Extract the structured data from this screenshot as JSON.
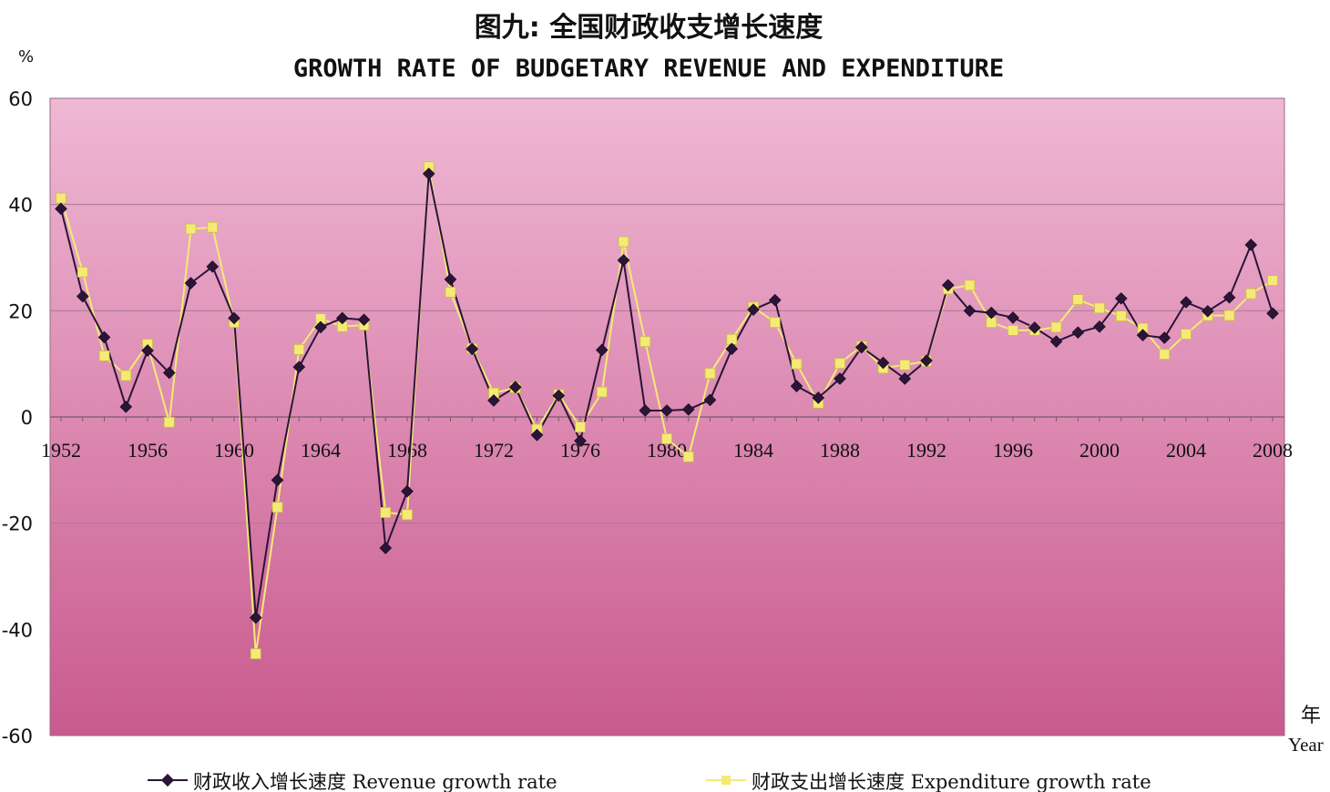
{
  "header": {
    "title_cn": "图九: 全国财政收支增长速度",
    "title_en": "GROWTH RATE OF BUDGETARY REVENUE AND EXPENDITURE"
  },
  "colors": {
    "plot_top": "#efb8d4",
    "plot_bottom": "#c95a8e",
    "revenue": "#2a1438",
    "expenditure": "#f4ea74"
  },
  "chart_data": {
    "type": "line",
    "title": "GROWTH RATE OF BUDGETARY REVENUE AND EXPENDITURE",
    "ylabel": "%",
    "xlabel_cn": "年",
    "xlabel_en": "Year",
    "ylim": [
      -60,
      60
    ],
    "xlim": [
      1952,
      2008
    ],
    "yticks": [
      60,
      40,
      20,
      0,
      -20,
      -40,
      -60
    ],
    "xticks": [
      1952,
      1956,
      1960,
      1964,
      1968,
      1972,
      1976,
      1980,
      1984,
      1988,
      1992,
      1996,
      2000,
      2004,
      2008
    ],
    "grid": true,
    "legend_position": "bottom",
    "x": [
      1952,
      1953,
      1954,
      1955,
      1956,
      1957,
      1958,
      1959,
      1960,
      1961,
      1962,
      1963,
      1964,
      1965,
      1966,
      1967,
      1968,
      1969,
      1970,
      1971,
      1972,
      1973,
      1974,
      1975,
      1976,
      1977,
      1978,
      1979,
      1980,
      1981,
      1982,
      1983,
      1984,
      1985,
      1986,
      1987,
      1988,
      1989,
      1990,
      1991,
      1992,
      1993,
      1994,
      1995,
      1996,
      1997,
      1998,
      1999,
      2000,
      2001,
      2002,
      2003,
      2004,
      2005,
      2006,
      2007,
      2008
    ],
    "series": [
      {
        "name": "财政收入增长速度 Revenue growth rate",
        "marker": "diamond",
        "values": [
          39.2,
          22.7,
          15.0,
          1.9,
          12.5,
          8.3,
          25.2,
          28.3,
          18.6,
          -37.8,
          -11.9,
          9.4,
          16.9,
          18.6,
          18.3,
          -24.7,
          -14.0,
          45.8,
          25.9,
          12.8,
          3.1,
          5.6,
          -3.4,
          4.0,
          -4.5,
          12.6,
          29.5,
          1.2,
          1.2,
          1.4,
          3.2,
          12.8,
          20.2,
          22.0,
          5.8,
          3.6,
          7.2,
          13.1,
          10.2,
          7.2,
          10.6,
          24.8,
          20.0,
          19.6,
          18.7,
          16.8,
          14.2,
          15.9,
          17.0,
          22.3,
          15.4,
          14.9,
          21.6,
          19.9,
          22.5,
          32.4,
          19.5
        ]
      },
      {
        "name": "财政支出增长速度 Expenditure growth rate",
        "marker": "square",
        "values": [
          41.2,
          27.3,
          11.5,
          7.8,
          13.7,
          -1.0,
          35.4,
          35.7,
          17.8,
          -44.6,
          -17.0,
          12.7,
          18.5,
          17.0,
          17.3,
          -18.0,
          -18.4,
          47.1,
          23.5,
          12.9,
          4.5,
          5.5,
          -2.3,
          4.2,
          -1.9,
          4.7,
          33.0,
          14.2,
          -4.1,
          -7.5,
          8.2,
          14.6,
          20.7,
          17.8,
          10.0,
          2.6,
          10.1,
          13.3,
          9.2,
          9.8,
          10.5,
          24.1,
          24.8,
          17.8,
          16.3,
          16.3,
          16.9,
          22.1,
          20.5,
          19.0,
          16.7,
          11.8,
          15.6,
          19.1,
          19.1,
          23.2,
          25.7
        ]
      }
    ]
  }
}
